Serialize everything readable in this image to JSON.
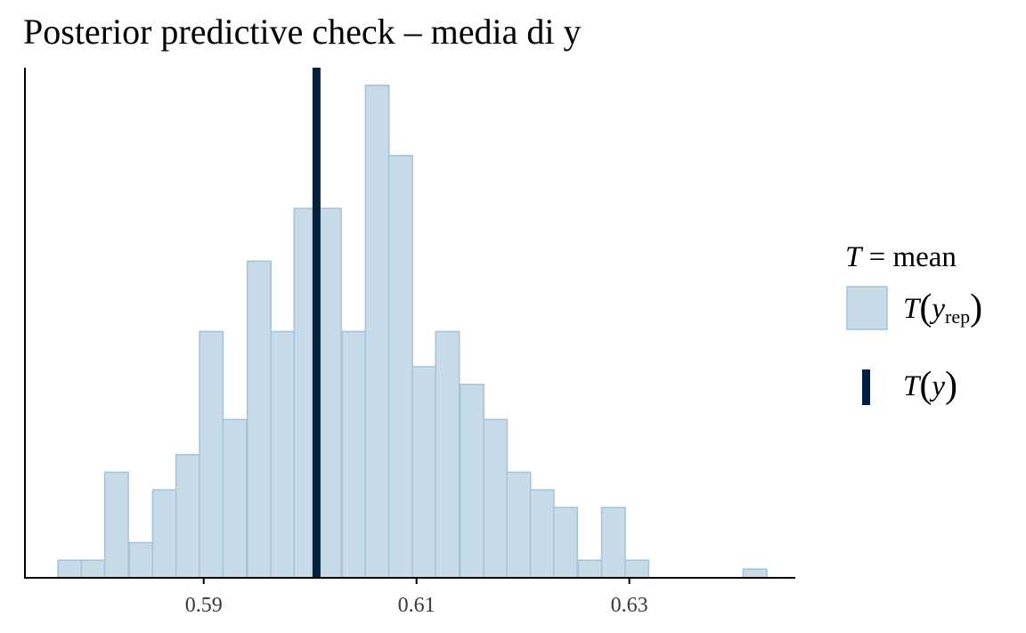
{
  "chart_data": {
    "type": "bar",
    "title": "Posterior predictive check – media di y",
    "xlabel": "",
    "ylabel": "",
    "xlim": [
      0.5732,
      0.6456
    ],
    "ylim": [
      0,
      29
    ],
    "grid": false,
    "bin_width": 0.00222,
    "bins": [
      {
        "x0": 0.5763,
        "count": 1
      },
      {
        "x0": 0.5785,
        "count": 1
      },
      {
        "x0": 0.5807,
        "count": 6
      },
      {
        "x0": 0.583,
        "count": 2
      },
      {
        "x0": 0.5852,
        "count": 5
      },
      {
        "x0": 0.5874,
        "count": 7
      },
      {
        "x0": 0.5896,
        "count": 14
      },
      {
        "x0": 0.5918,
        "count": 9
      },
      {
        "x0": 0.5941,
        "count": 18
      },
      {
        "x0": 0.5963,
        "count": 14
      },
      {
        "x0": 0.5985,
        "count": 21
      },
      {
        "x0": 0.6007,
        "count": 21
      },
      {
        "x0": 0.603,
        "count": 14
      },
      {
        "x0": 0.6052,
        "count": 28
      },
      {
        "x0": 0.6074,
        "count": 24
      },
      {
        "x0": 0.6096,
        "count": 12
      },
      {
        "x0": 0.6118,
        "count": 14
      },
      {
        "x0": 0.6141,
        "count": 11
      },
      {
        "x0": 0.6163,
        "count": 9
      },
      {
        "x0": 0.6185,
        "count": 6
      },
      {
        "x0": 0.6207,
        "count": 5
      },
      {
        "x0": 0.6229,
        "count": 4
      },
      {
        "x0": 0.6252,
        "count": 1
      },
      {
        "x0": 0.6274,
        "count": 4
      },
      {
        "x0": 0.6296,
        "count": 1
      },
      {
        "x0": 0.6407,
        "count": 0.5
      }
    ],
    "observed_statistic": 0.6006,
    "x_ticks": [
      0.59,
      0.61,
      0.63
    ],
    "x_tick_labels": [
      "0.59",
      "0.61",
      "0.63"
    ],
    "legend": {
      "position": "right",
      "title_var": "T",
      "title_rest": " = mean",
      "items": [
        {
          "name": "T(y_rep)",
          "label_main": "T",
          "label_arg": "y",
          "label_sub": "rep",
          "type": "bar"
        },
        {
          "name": "T(y)",
          "label_main": "T",
          "label_arg": "y",
          "label_sub": "",
          "type": "line"
        }
      ]
    },
    "colors": {
      "bar_fill": "#c6dae7",
      "bar_stroke": "#a4c3d9",
      "observed_line": "#011f3f",
      "axis": "#000000"
    }
  }
}
